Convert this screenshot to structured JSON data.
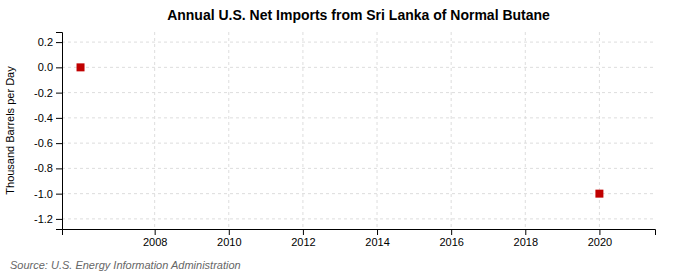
{
  "chart_data": {
    "type": "scatter",
    "title": "Annual U.S. Net Imports from Sri Lanka of Normal Butane",
    "ylabel": "Thousand Barrels per Day",
    "annotations": [
      "Source: U.S. Energy Information Administration"
    ],
    "x": [
      2006,
      2020
    ],
    "values": [
      0.0,
      -1.0
    ],
    "color": "#c00000",
    "marker": "square",
    "xlim": [
      2005.5,
      2021.5
    ],
    "ylim": [
      -1.28,
      0.28
    ],
    "xticks": [
      2008,
      2010,
      2012,
      2014,
      2016,
      2018,
      2020
    ],
    "yticks": [
      0.2,
      {
        "value": 0.0,
        "label": "0.0"
      },
      -0.2,
      -0.4,
      -0.6,
      -0.8,
      {
        "value": -1.0,
        "label": "-1.0"
      },
      -1.2
    ],
    "grid": true
  }
}
